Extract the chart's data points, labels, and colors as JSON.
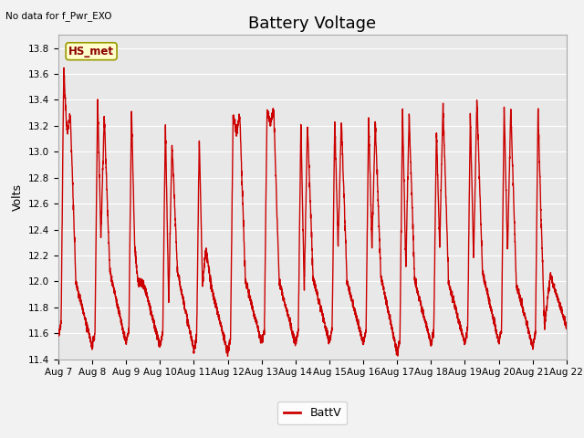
{
  "title": "Battery Voltage",
  "ylabel": "Volts",
  "xlabel": "",
  "ylim": [
    11.4,
    13.9
  ],
  "line_color": "#cc0000",
  "line_width": 1.0,
  "bg_color": "#e8e8e8",
  "fig_bg": "#f2f2f2",
  "no_data_text": "No data for f_Pwr_EXO",
  "hs_met_label": "HS_met",
  "legend_label": "BattV",
  "x_tick_labels": [
    "Aug 7",
    "Aug 8",
    "Aug 9",
    "Aug 10",
    "Aug 11",
    "Aug 12",
    "Aug 13",
    "Aug 14",
    "Aug 15",
    "Aug 16",
    "Aug 17",
    "Aug 18",
    "Aug 19",
    "Aug 20",
    "Aug 21",
    "Aug 22"
  ],
  "grid_color": "#ffffff",
  "title_fontsize": 13,
  "label_fontsize": 9,
  "tick_fontsize": 7.5
}
